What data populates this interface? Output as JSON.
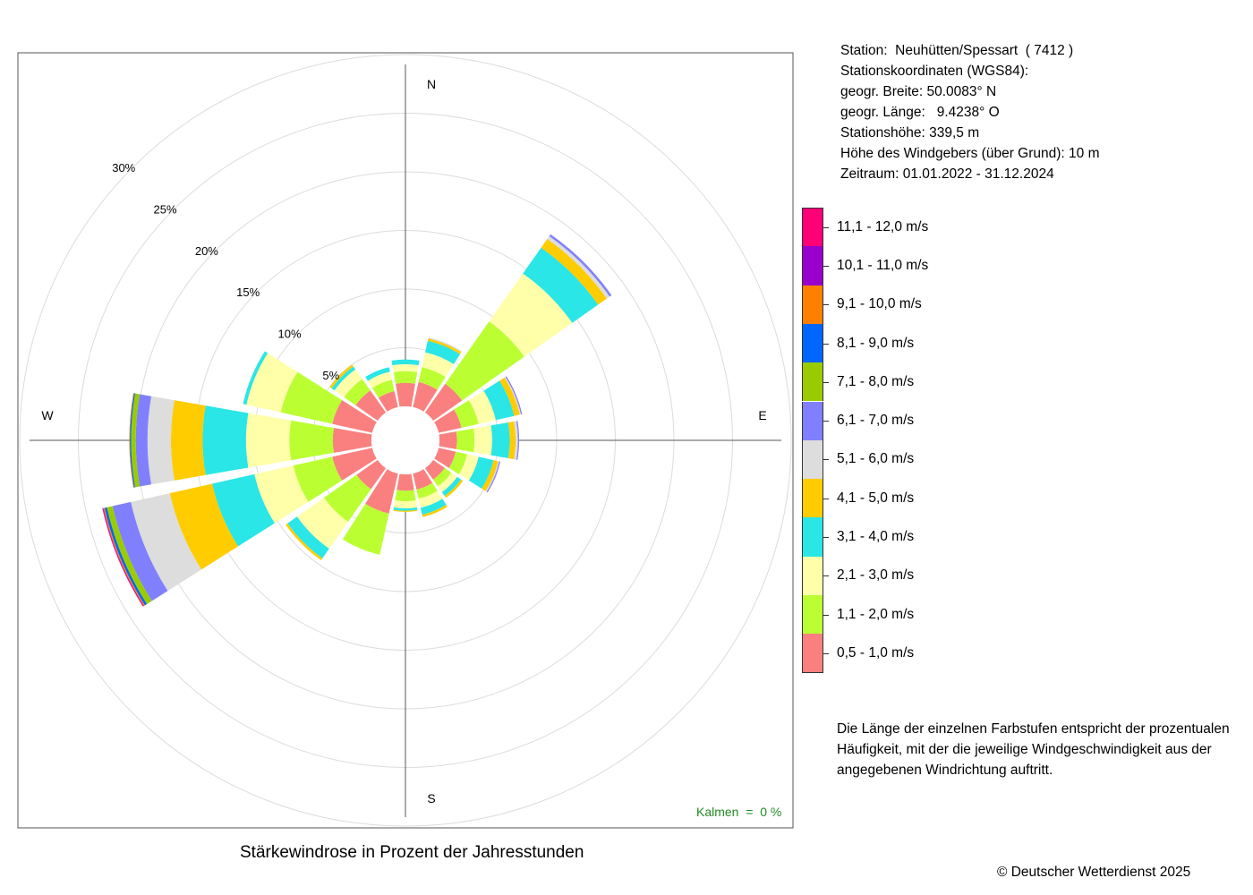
{
  "station": {
    "line1": "Station:  Neuhütten/Spessart  ( 7412 )",
    "line2": "Stationskoordinaten (WGS84):",
    "line3": "geogr. Breite: 50.0083° N",
    "line4": "geogr. Länge:   9.4238° O",
    "line5": "Stationshöhe: 339,5 m",
    "line6": "Höhe des Windgebers (über Grund): 10 m",
    "line7": "Zeitraum: 01.01.2022 - 31.12.2024"
  },
  "note": "Die Länge der einzelnen Farbstufen entspricht der prozentualen Häufigkeit, mit der die jeweilige Windgeschwindigkeit aus der angegebenen Windrichtung auftritt.",
  "footer_title": "Stärkewindrose in Prozent der Jahresstunden",
  "copyright": "© Deutscher Wetterdienst  2025",
  "calm_label": "Kalmen  =  0 %",
  "chart_data": {
    "type": "polar-stacked-bar",
    "title": "Stärkewindrose in Prozent der Jahresstunden",
    "directions": [
      "N",
      "NNO",
      "NO",
      "ONO",
      "O",
      "OSO",
      "SO",
      "SSO",
      "S",
      "SSW",
      "SW",
      "WSW",
      "W",
      "WNW",
      "NW",
      "NNW"
    ],
    "direction_labels": [
      "N",
      "E",
      "S",
      "W"
    ],
    "radial_ticks": [
      "5%",
      "10%",
      "15%",
      "20%",
      "25%",
      "30%"
    ],
    "radial_values": [
      5,
      10,
      15,
      20,
      25,
      30
    ],
    "rmax": 30,
    "classes": [
      {
        "label": "0,5 - 1,0 m/s",
        "color": "#fa8080"
      },
      {
        "label": "1,1 - 2,0 m/s",
        "color": "#bbff33"
      },
      {
        "label": "2,1 - 3,0 m/s",
        "color": "#ffffaa"
      },
      {
        "label": "3,1 - 4,0 m/s",
        "color": "#2ae6e6"
      },
      {
        "label": "4,1 - 5,0 m/s",
        "color": "#ffcc00"
      },
      {
        "label": "5,1 - 6,0 m/s",
        "color": "#dddddd"
      },
      {
        "label": "6,1 - 7,0 m/s",
        "color": "#8080ff"
      },
      {
        "label": "7,1 - 8,0 m/s",
        "color": "#99cc00"
      },
      {
        "label": "8,1 - 9,0 m/s",
        "color": "#0066ff"
      },
      {
        "label": "9,1 - 10,0 m/s",
        "color": "#ff8000"
      },
      {
        "label": "10,1 - 11,0 m/s",
        "color": "#9900cc"
      },
      {
        "label": "11,1 - 12,0 m/s",
        "color": "#ff0077"
      }
    ],
    "values": [
      [
        2.0,
        1.0,
        0.6,
        0.4,
        0,
        0,
        0,
        0,
        0,
        0,
        0,
        0
      ],
      [
        2.2,
        1.3,
        1.3,
        1.0,
        0.2,
        0.1,
        0,
        0,
        0,
        0,
        0,
        0
      ],
      [
        3.0,
        6.5,
        5.0,
        2.7,
        0.9,
        0.3,
        0.2,
        0,
        0,
        0,
        0,
        0
      ],
      [
        2.0,
        1.5,
        1.5,
        1.6,
        0.5,
        0.1,
        0.1,
        0,
        0,
        0,
        0,
        0
      ],
      [
        1.5,
        1.5,
        1.5,
        1.5,
        0.5,
        0.2,
        0.1,
        0,
        0,
        0,
        0,
        0
      ],
      [
        1.5,
        1.0,
        1.0,
        1.3,
        0.4,
        0.1,
        0.1,
        0,
        0,
        0,
        0,
        0
      ],
      [
        1.2,
        0.7,
        0.6,
        0.4,
        0.2,
        0,
        0,
        0,
        0,
        0,
        0,
        0
      ],
      [
        1.4,
        0.8,
        0.8,
        0.6,
        0.2,
        0,
        0,
        0,
        0,
        0,
        0,
        0
      ],
      [
        1.4,
        0.9,
        0.6,
        0.2,
        0.1,
        0,
        0,
        0,
        0,
        0,
        0,
        0
      ],
      [
        3.5,
        3.6,
        0,
        0,
        0,
        0,
        0,
        0,
        0,
        0,
        0,
        0
      ],
      [
        2.2,
        3.4,
        2.8,
        1.0,
        0.2,
        0,
        0,
        0,
        0,
        0,
        0,
        0
      ],
      [
        3.5,
        3.4,
        3.4,
        3.7,
        3.7,
        3.4,
        1.6,
        0.5,
        0.2,
        0.1,
        0.05,
        0.05
      ],
      [
        3.3,
        3.7,
        3.7,
        3.7,
        2.7,
        2.0,
        1.0,
        0.4,
        0.1,
        0.05,
        0,
        0
      ],
      [
        3.5,
        4.5,
        3.0,
        0.3,
        0,
        0,
        0,
        0,
        0,
        0,
        0,
        0
      ],
      [
        2.3,
        1.2,
        1.0,
        0.3,
        0.2,
        0,
        0,
        0,
        0,
        0,
        0,
        0
      ],
      [
        1.4,
        1.0,
        0.7,
        0.4,
        0,
        0,
        0,
        0,
        0,
        0,
        0,
        0
      ]
    ]
  }
}
